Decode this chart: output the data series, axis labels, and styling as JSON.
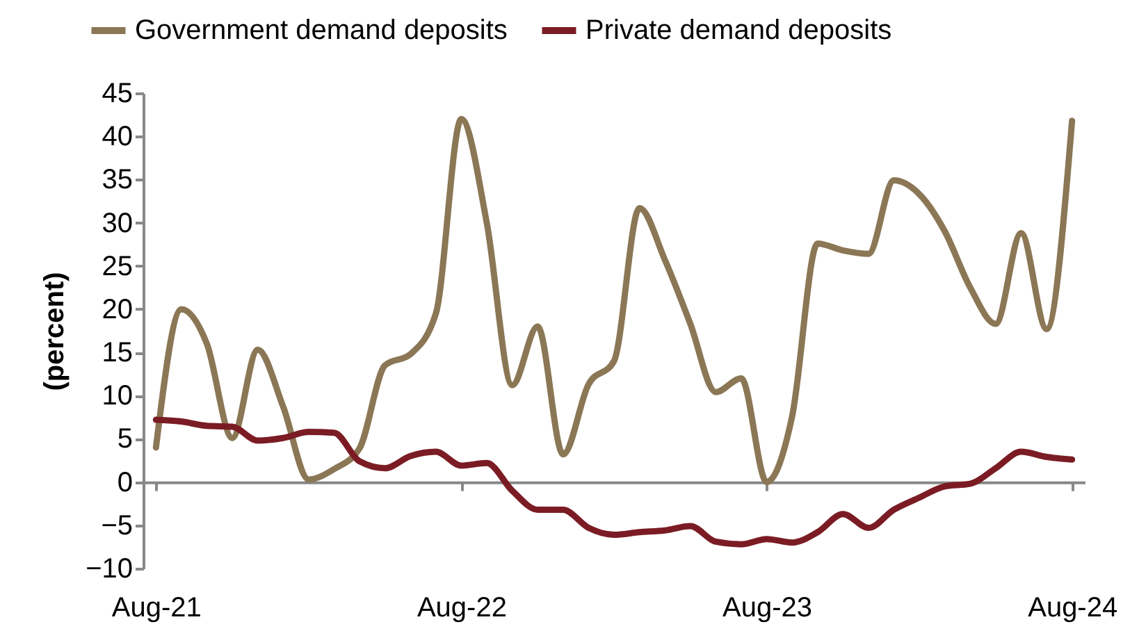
{
  "chart_data": {
    "type": "line",
    "ylabel": "(percent)",
    "categories": [
      "Aug-21",
      null,
      null,
      null,
      null,
      null,
      null,
      null,
      null,
      null,
      null,
      null,
      "Aug-22",
      null,
      null,
      null,
      null,
      null,
      null,
      null,
      null,
      null,
      null,
      null,
      "Aug-23",
      null,
      null,
      null,
      null,
      null,
      null,
      null,
      null,
      null,
      null,
      null,
      "Aug-24"
    ],
    "series": [
      {
        "name": "Government demand deposits",
        "color": "#8b7755",
        "values": [
          4,
          20,
          16,
          5.1,
          15.3,
          8.7,
          0.3,
          1.5,
          3.9,
          13.5,
          14.8,
          19.5,
          42,
          30,
          11.2,
          18,
          3.2,
          11.3,
          14,
          31.7,
          25.7,
          18.3,
          10.4,
          12,
          0,
          7.6,
          27.6,
          26.8,
          26.4,
          34.9,
          33.3,
          29,
          22.5,
          18.3,
          28.8,
          17.7,
          41.8
        ]
      },
      {
        "name": "Private demand deposits",
        "color": "#7b1c24",
        "values": [
          7.2,
          7,
          6.5,
          6.4,
          4.8,
          5.1,
          5.8,
          5.7,
          2.4,
          1.6,
          3,
          3.5,
          1.9,
          2.2,
          -1,
          -3.2,
          -3.2,
          -5.3,
          -6.1,
          -5.8,
          -5.6,
          -5.1,
          -6.9,
          -7.2,
          -6.6,
          -7,
          -5.8,
          -3.7,
          -5.3,
          -3.2,
          -1.8,
          -0.5,
          -0.2,
          1.6,
          3.5,
          2.9,
          2.6
        ]
      }
    ],
    "ylim": [
      -10,
      45
    ],
    "yticks": [
      -10,
      -5,
      0,
      5,
      10,
      15,
      20,
      25,
      30,
      35,
      40,
      45
    ],
    "legend": "top left",
    "marker": "none",
    "line_style": "solid"
  }
}
